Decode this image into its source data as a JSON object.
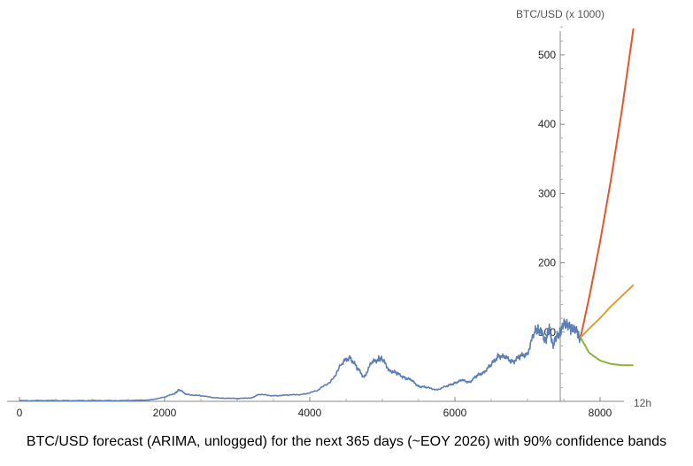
{
  "chart_data": {
    "type": "line",
    "caption": "BTC/USD forecast (ARIMA, unlogged) for the next 365 days (~EOY 2026) with 90% confidence bands",
    "xlabel": "12h",
    "ylabel": "BTC/USD (x 1000)",
    "xlim": [
      0,
      8500
    ],
    "ylim": [
      0,
      560
    ],
    "x_ticks": [
      "0",
      "2000",
      "4000",
      "6000",
      "8000"
    ],
    "y_ticks": [
      "100",
      "200",
      "300",
      "400",
      "500"
    ],
    "grid": false,
    "series": [
      {
        "color": "#5b7fb5",
        "x": [
          0,
          300,
          600,
          900,
          1200,
          1500,
          1800,
          2000,
          2150,
          2200,
          2300,
          2500,
          2700,
          3000,
          3200,
          3300,
          3500,
          3700,
          3900,
          4100,
          4300,
          4450,
          4550,
          4650,
          4750,
          4850,
          4950,
          5000,
          5100,
          5200,
          5300,
          5400,
          5500,
          5600,
          5750,
          5900,
          6000,
          6100,
          6200,
          6300,
          6400,
          6500,
          6600,
          6700,
          6800,
          6900,
          7000,
          7100,
          7150,
          7200,
          7250,
          7300,
          7350,
          7400,
          7450,
          7500,
          7550,
          7600,
          7650,
          7700,
          7730
        ],
        "y": [
          1,
          1,
          1,
          1,
          1,
          1,
          2,
          6,
          12,
          17,
          10,
          8,
          5,
          4,
          5,
          10,
          8,
          9,
          10,
          15,
          30,
          55,
          65,
          48,
          35,
          55,
          62,
          60,
          45,
          40,
          35,
          30,
          22,
          20,
          17,
          22,
          27,
          30,
          28,
          36,
          43,
          52,
          67,
          62,
          58,
          64,
          70,
          100,
          105,
          96,
          88,
          105,
          82,
          92,
          100,
          110,
          113,
          103,
          108,
          95,
          88
        ]
      },
      {
        "color": "#e8552b",
        "x": [
          7730,
          7850,
          8000,
          8150,
          8300,
          8460
        ],
        "y": [
          92,
          150,
          230,
          320,
          420,
          538
        ]
      },
      {
        "color": "#e29f2e",
        "x": [
          7730,
          7850,
          8000,
          8150,
          8300,
          8460
        ],
        "y": [
          92,
          105,
          120,
          137,
          152,
          168
        ]
      },
      {
        "color": "#8cb43c",
        "x": [
          7730,
          7850,
          8000,
          8150,
          8300,
          8460
        ],
        "y": [
          92,
          70,
          59,
          54,
          52,
          52
        ]
      }
    ]
  }
}
